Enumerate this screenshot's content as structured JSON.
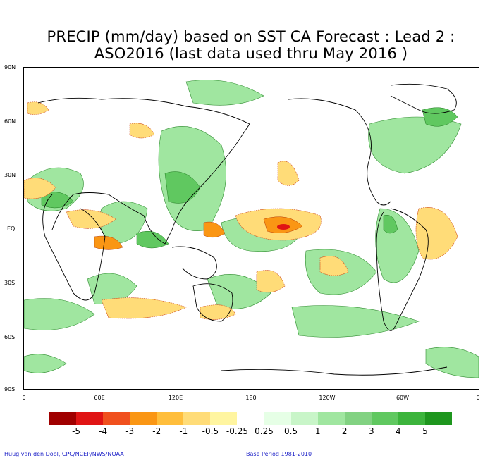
{
  "title": {
    "line1": "PRECIP (mm/day) based on SST CA Forecast : Lead 2 :",
    "line2": "ASO2016 (last data used thru May 2016 )"
  },
  "map": {
    "lat_labels": [
      "90N",
      "60N",
      "30N",
      "EQ",
      "30S",
      "60S",
      "90S"
    ],
    "lon_labels": [
      "0",
      "60E",
      "120E",
      "180",
      "120W",
      "60W",
      "0"
    ]
  },
  "colorbar": {
    "colors": [
      "#a00000",
      "#e01414",
      "#f0501e",
      "#fa9614",
      "#ffbe3c",
      "#ffdc78",
      "#fff5a0",
      "#ffffff",
      "#e6ffe6",
      "#c8f5c8",
      "#a0e6a0",
      "#82d282",
      "#60c860",
      "#3cb43c",
      "#1e961e"
    ],
    "labels": [
      "-5",
      "-4",
      "-3",
      "-2",
      "-1",
      "-0.5",
      "-0.25",
      "0.25",
      "0.5",
      "1",
      "2",
      "3",
      "4",
      "5"
    ]
  },
  "credits": {
    "left": "Huug van den Dool, CPC/NCEP/NWS/NOAA",
    "right": "Base Period 1981-2010"
  }
}
